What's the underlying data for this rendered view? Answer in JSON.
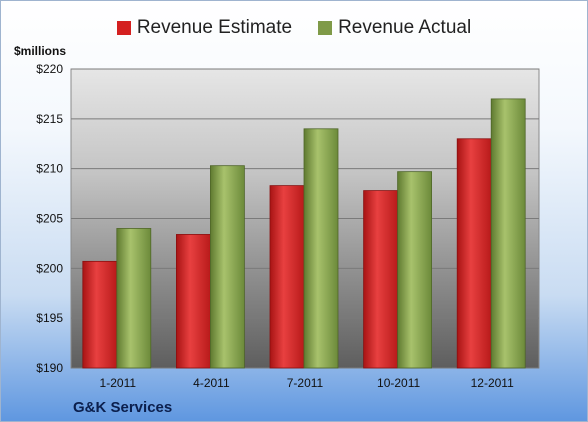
{
  "legend": {
    "estimate_label": "Revenue Estimate",
    "actual_label": "Revenue Actual",
    "estimate_color": "#d42020",
    "actual_color": "#7f9a48"
  },
  "footer": {
    "company": "G&K Services"
  },
  "chart_data": {
    "type": "bar",
    "ylabel": "$millions",
    "ylim": [
      190,
      220
    ],
    "yticks": [
      190,
      195,
      200,
      205,
      210,
      215,
      220
    ],
    "ytick_labels": [
      "$190",
      "$195",
      "$200",
      "$205",
      "$210",
      "$215",
      "$220"
    ],
    "categories": [
      "1-2011",
      "4-2011",
      "7-2011",
      "10-2011",
      "12-2011"
    ],
    "series": [
      {
        "name": "Revenue Estimate",
        "values": [
          200.7,
          203.4,
          208.3,
          207.8,
          213.0
        ],
        "color": "#d42020"
      },
      {
        "name": "Revenue Actual",
        "values": [
          204.0,
          210.3,
          214.0,
          209.7,
          217.0
        ],
        "color": "#7f9a48"
      }
    ],
    "grid": true,
    "legend_position": "top"
  }
}
